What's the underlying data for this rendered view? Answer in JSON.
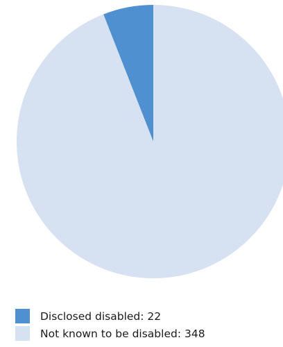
{
  "chart_data": {
    "type": "pie",
    "start_angle": "top",
    "direction": "counterclockwise",
    "slices": [
      {
        "label": "Disclosed disabled: 22",
        "name": "Disclosed disabled",
        "value": 22,
        "color": "#4f90d0"
      },
      {
        "label": "Not known to be disabled: 348",
        "name": "Not known to be disabled",
        "value": 348,
        "color": "#d6e1f1"
      }
    ],
    "legend_position": "bottom-left",
    "title": ""
  }
}
